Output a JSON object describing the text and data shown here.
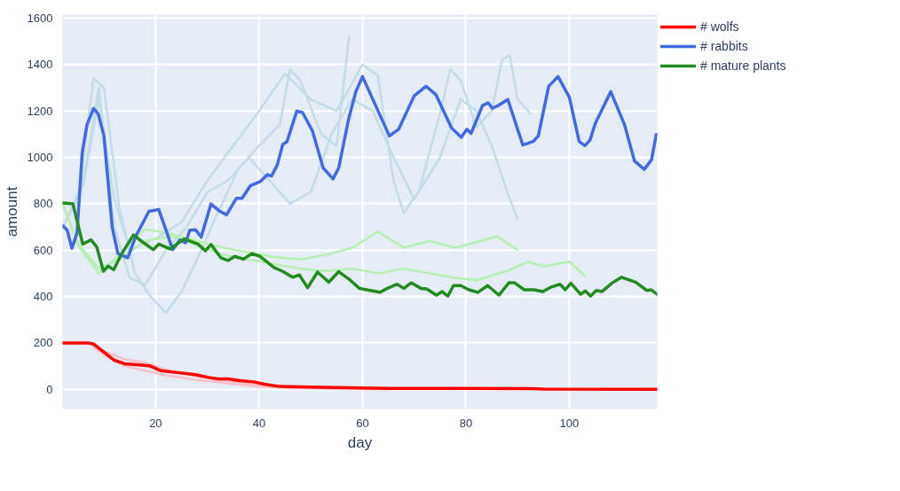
{
  "chart_data": {
    "type": "line",
    "xlabel": "day",
    "ylabel": "amount",
    "xlim": [
      2,
      117
    ],
    "ylim": [
      -85,
      1615
    ],
    "xticks": [
      20,
      40,
      60,
      80,
      100
    ],
    "yticks": [
      0,
      200,
      400,
      600,
      800,
      1000,
      1200,
      1400,
      1600
    ],
    "grid": true,
    "legend": "top right",
    "marker": "none",
    "line_style": "solid",
    "series": [
      {
        "color": "#c3dde8",
        "x": [
          2,
          5,
          8,
          10,
          13,
          16,
          19,
          22,
          25,
          28,
          32,
          36,
          40,
          44,
          46,
          48,
          52,
          55,
          57.4
        ],
        "values": [
          700,
          820,
          1340,
          1300,
          780,
          500,
          400,
          330,
          420,
          560,
          760,
          950,
          1050,
          1140,
          1380,
          1330,
          1100,
          1050,
          1520
        ]
      },
      {
        "color": "#c3dde8",
        "x": [
          2,
          6,
          9,
          12,
          15,
          18,
          22,
          26,
          30,
          34,
          38,
          42,
          46,
          50,
          54,
          58,
          62,
          66,
          70,
          75,
          79,
          82,
          85,
          88,
          90
        ],
        "values": [
          690,
          900,
          1300,
          700,
          480,
          450,
          600,
          700,
          850,
          900,
          1000,
          900,
          800,
          850,
          1100,
          1250,
          1200,
          1000,
          820,
          1000,
          1250,
          1200,
          1050,
          850,
          734
        ]
      },
      {
        "color": "#c3dde8",
        "x": [
          2,
          6,
          9,
          12,
          15,
          20,
          25,
          30,
          35,
          40,
          45,
          50,
          55,
          60,
          63,
          66,
          68,
          71,
          75,
          77,
          79,
          82,
          85,
          87,
          88.5,
          90,
          92.5
        ],
        "values": [
          700,
          880,
          1250,
          820,
          600,
          650,
          720,
          900,
          1050,
          1200,
          1360,
          1250,
          1200,
          1400,
          1350,
          900,
          760,
          860,
          1190,
          1380,
          1330,
          1130,
          1200,
          1420,
          1440,
          1250,
          1187
        ]
      },
      {
        "color": "#b6f0b0",
        "x": [
          2,
          5,
          9,
          13,
          18,
          23,
          28,
          33,
          38,
          43,
          48,
          53,
          58,
          63,
          68,
          73,
          78,
          83,
          86,
          90
        ],
        "values": [
          800,
          620,
          500,
          580,
          690,
          670,
          640,
          610,
          590,
          570,
          560,
          580,
          610,
          680,
          610,
          640,
          610,
          640,
          660,
          600
        ]
      },
      {
        "color": "#b6f0b0",
        "x": [
          2,
          5,
          9,
          13,
          18,
          23,
          28,
          33,
          38,
          43,
          48,
          53,
          58,
          63,
          68,
          73,
          78,
          82,
          88,
          92,
          95,
          100,
          103
        ],
        "values": [
          800,
          630,
          520,
          560,
          640,
          660,
          620,
          580,
          560,
          540,
          520,
          510,
          520,
          500,
          520,
          500,
          480,
          470,
          510,
          550,
          530,
          550,
          490
        ]
      },
      {
        "color": "#f8c0c8",
        "x": [
          2,
          7,
          10,
          14,
          18,
          22,
          28,
          34,
          40,
          46,
          55,
          65
        ],
        "values": [
          200,
          200,
          150,
          100,
          80,
          60,
          40,
          25,
          12,
          5,
          2,
          0
        ]
      },
      {
        "color": "#f8c0c8",
        "x": [
          8,
          10,
          14,
          18,
          22,
          28,
          34,
          40,
          44
        ],
        "values": [
          195,
          165,
          130,
          115,
          85,
          55,
          35,
          20,
          10
        ]
      },
      {
        "name": "# wolfs",
        "color": "#ff0000",
        "x": [
          2,
          7,
          8,
          10,
          12,
          14,
          17,
          19,
          21,
          23,
          26,
          28,
          30,
          32,
          34,
          36,
          39,
          41,
          44,
          50,
          60,
          65,
          80,
          93,
          95,
          117
        ],
        "values": [
          200,
          200,
          195,
          160,
          125,
          110,
          105,
          100,
          80,
          75,
          68,
          62,
          52,
          45,
          45,
          38,
          32,
          22,
          12,
          10,
          6,
          4,
          4,
          3,
          1,
          0
        ]
      },
      {
        "name": "# rabbits",
        "color": "#4169e1",
        "x": [
          2.1,
          2.9,
          3.8,
          4.8,
          5.8,
          6.7,
          8,
          8.9,
          10,
          11.6,
          12.7,
          14.6,
          16.2,
          18.7,
          20.6,
          22,
          23.3,
          24.7,
          25.8,
          26.6,
          27.7,
          28.8,
          30.7,
          32.3,
          33.7,
          35.6,
          36.7,
          38.3,
          40.2,
          41.6,
          42.4,
          43.5,
          44.6,
          45.4,
          47.3,
          48.4,
          50.3,
          52.4,
          54.3,
          55.4,
          57.3,
          58.7,
          60,
          65.2,
          67,
          70,
          72.3,
          74.2,
          77.2,
          79.1,
          80.2,
          81,
          83.2,
          84.3,
          85.1,
          86.4,
          88.1,
          91,
          93,
          94,
          96,
          97.8,
          100,
          101.9,
          103,
          104,
          105,
          108,
          110.7,
          112.6,
          114.5,
          115.9,
          116.8
        ],
        "values": [
          704,
          686,
          608,
          674,
          1020,
          1139,
          1211,
          1187,
          1092,
          698,
          585,
          567,
          662,
          767,
          775,
          686,
          602,
          644,
          632,
          686,
          688,
          656,
          799,
          769,
          752,
          823,
          823,
          877,
          895,
          925,
          919,
          966,
          1056,
          1068,
          1199,
          1193,
          1115,
          954,
          907,
          954,
          1163,
          1282,
          1348,
          1092,
          1121,
          1265,
          1306,
          1270,
          1127,
          1086,
          1121,
          1103,
          1223,
          1235,
          1211,
          1225,
          1249,
          1053,
          1068,
          1092,
          1306,
          1348,
          1259,
          1068,
          1050,
          1074,
          1145,
          1283,
          1139,
          984,
          948,
          990,
          1098
        ]
      },
      {
        "name": "# mature plants",
        "color": "#228b22",
        "x": [
          2.1,
          4,
          5.9,
          7.5,
          8.6,
          9.9,
          10.8,
          11.9,
          13.3,
          15.7,
          17.3,
          19.5,
          20.6,
          22.8,
          25.5,
          28.2,
          29.6,
          30.7,
          32.6,
          34,
          35.3,
          37,
          38.6,
          40.2,
          42.9,
          44.5,
          46.5,
          47.8,
          49.4,
          51.3,
          53.5,
          55.4,
          57.6,
          59.4,
          61.5,
          63.4,
          64.8,
          66.7,
          68,
          69.4,
          71.3,
          72.4,
          74.3,
          75.4,
          76.5,
          77.6,
          79,
          80.6,
          82.3,
          84.2,
          86.4,
          88.3,
          89.4,
          91.3,
          93.2,
          94.9,
          96.5,
          98.2,
          99.2,
          100.3,
          102.2,
          103.1,
          104.1,
          105.2,
          106.3,
          108.2,
          110.1,
          112.8,
          115,
          115.8,
          117
        ],
        "values": [
          803,
          799,
          626,
          644,
          614,
          509,
          531,
          516,
          579,
          665,
          638,
          602,
          626,
          605,
          648,
          626,
          597,
          624,
          567,
          555,
          573,
          561,
          585,
          573,
          525,
          509,
          483,
          493,
          438,
          505,
          462,
          507,
          471,
          435,
          426,
          418,
          435,
          453,
          435,
          459,
          435,
          433,
          406,
          421,
          402,
          447,
          447,
          429,
          418,
          447,
          406,
          459,
          459,
          429,
          429,
          421,
          441,
          453,
          429,
          457,
          409,
          424,
          402,
          426,
          421,
          457,
          483,
          462,
          426,
          429,
          409
        ]
      }
    ]
  }
}
